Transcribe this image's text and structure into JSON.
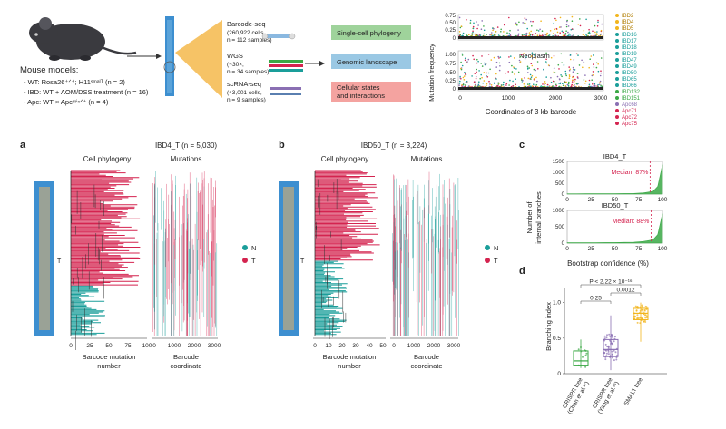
{
  "colors": {
    "teal": "#1a9e9a",
    "crimson": "#d4234f",
    "green": "#3aa845",
    "gold": "#f2b51c",
    "purple": "#8a6fb3",
    "dark": "#222222",
    "box_phylo": "#9fd39b",
    "box_genomic": "#9ac8e4",
    "box_cellular": "#f4a3a0",
    "tissue_blue": "#3d8fd0"
  },
  "mouse_models": {
    "heading": "Mouse models:",
    "lines": [
      "- WT: Rosa26⁺ᐟ⁺; H11ˢᵐᵃˡᵀ (n = 2)",
      "- IBD: WT + AOM/DSS treatment (n = 16)",
      "- Apc: WT × Apcᵐⁱⁿᐟ⁺ (n = 4)"
    ]
  },
  "assays": [
    {
      "title": "Barcode-seq",
      "lines": [
        "(260,922 cells,",
        "n = 112 samples)"
      ]
    },
    {
      "title": "WGS",
      "lines": [
        "(~30×,",
        "n = 34 samples)"
      ]
    },
    {
      "title": "scRNA-seq",
      "lines": [
        "(43,001 cells,",
        "n = 9 samples)"
      ]
    }
  ],
  "outputs": [
    "Single-cell phylogeny",
    "Genomic landscape",
    "Cellular states\nand interactions"
  ],
  "top_plot": {
    "ylabel": "Mutation frequency",
    "xlabel": "Coordinates of 3 kb barcode",
    "top_ticks": [
      "0",
      "0.25",
      "0.50",
      "0.75"
    ],
    "bottom_ticks": [
      "0",
      "0.25",
      "0.50",
      "0.75",
      "1.00"
    ],
    "x_ticks": [
      "0",
      "1000",
      "2000",
      "3000"
    ],
    "annotation": "Neoplasm"
  },
  "legend_samples": [
    {
      "name": "IBD2",
      "color": "#f2b51c"
    },
    {
      "name": "IBD4",
      "color": "#f2b51c"
    },
    {
      "name": "IBD5",
      "color": "#f2b51c"
    },
    {
      "name": "IBD16",
      "color": "#1a9e9a"
    },
    {
      "name": "IBD17",
      "color": "#1a9e9a"
    },
    {
      "name": "IBD18",
      "color": "#1a9e9a"
    },
    {
      "name": "IBD19",
      "color": "#1a9e9a"
    },
    {
      "name": "IBD47",
      "color": "#1a9e9a"
    },
    {
      "name": "IBD49",
      "color": "#1a9e9a"
    },
    {
      "name": "IBD50",
      "color": "#1a9e9a"
    },
    {
      "name": "IBD65",
      "color": "#1a9e9a"
    },
    {
      "name": "IBD66",
      "color": "#1a9e9a"
    },
    {
      "name": "IBD132",
      "color": "#3aa845"
    },
    {
      "name": "IBD151",
      "color": "#3aa845"
    },
    {
      "name": "Apc68",
      "color": "#8a6fb3"
    },
    {
      "name": "Apc71",
      "color": "#d4234f"
    },
    {
      "name": "Apc72",
      "color": "#d4234f"
    },
    {
      "name": "Apc75",
      "color": "#d4234f"
    }
  ],
  "panel_a": {
    "letter": "a",
    "title": "IBD4_T (n = 5,030)",
    "phylo_label": "Cell phylogeny",
    "mut_label": "Mutations",
    "x1_ticks": [
      "0",
      "25",
      "50",
      "75",
      "100"
    ],
    "x1_label": [
      "Barcode mutation",
      "number"
    ],
    "x2_ticks": [
      "0",
      "1000",
      "2000",
      "3000"
    ],
    "x2_label": [
      "Barcode",
      "coordinate"
    ],
    "tissue_mark": "T"
  },
  "panel_b": {
    "letter": "b",
    "title": "IBD50_T (n = 3,224)",
    "phylo_label": "Cell phylogeny",
    "mut_label": "Mutations",
    "x1_ticks": [
      "0",
      "10",
      "20",
      "30",
      "40",
      "50"
    ],
    "x1_label": [
      "Barcode mutation",
      "number"
    ],
    "x2_ticks": [
      "0",
      "1000",
      "2000",
      "3000"
    ],
    "x2_label": [
      "Barcode",
      "coordinate"
    ],
    "tissue_mark": "T"
  },
  "nt_legend": [
    {
      "label": "N",
      "color": "#1a9e9a"
    },
    {
      "label": "T",
      "color": "#d4234f"
    }
  ],
  "panel_c": {
    "letter": "c",
    "ylabel": [
      "Number of",
      "internal branches"
    ],
    "xlabel": "Bootstrap confidence (%)",
    "x_ticks": [
      "0",
      "25",
      "50",
      "75",
      "100"
    ],
    "subplots": [
      {
        "title": "IBD4_T",
        "median_label": "Median: 87%",
        "median": 87,
        "y_ticks": [
          "0",
          "500",
          "1000",
          "1500"
        ],
        "ymax": 1500
      },
      {
        "title": "IBD50_T",
        "median_label": "Median: 88%",
        "median": 88,
        "y_ticks": [
          "0",
          "500",
          "1000"
        ],
        "ymax": 1000
      }
    ]
  },
  "panel_d": {
    "letter": "d",
    "ylabel": "Branching index",
    "y_ticks": [
      "0",
      "0.5",
      "1.0"
    ],
    "categories": [
      {
        "label": [
          "CRISPR tree",
          "(Chan et al.¹⁷)"
        ],
        "color": "#3aa845"
      },
      {
        "label": [
          "CRISPR tree",
          "(Yang et al.¹⁶)"
        ],
        "color": "#8a6fb3"
      },
      {
        "label": [
          "SMALT tree"
        ],
        "color": "#f2b51c"
      }
    ],
    "p_values": [
      "P < 2.22 × 10⁻¹⁶",
      "0.0012",
      "0.25"
    ]
  },
  "chart_data": [
    {
      "type": "box",
      "title": "",
      "ylabel": "Branching index",
      "ylim": [
        0,
        1.2
      ],
      "categories": [
        "CRISPR tree (Chan et al.)",
        "CRISPR tree (Yang et al.)",
        "SMALT tree"
      ],
      "series": [
        {
          "values": [
            {
              "min": 0.08,
              "q1": 0.12,
              "median": 0.18,
              "q3": 0.32,
              "max": 0.48
            },
            {
              "min": 0.05,
              "q1": 0.24,
              "median": 0.34,
              "q3": 0.48,
              "max": 0.82
            },
            {
              "min": 0.45,
              "q1": 0.76,
              "median": 0.85,
              "q3": 0.92,
              "max": 1.0
            }
          ]
        }
      ]
    },
    {
      "type": "bar",
      "title": "IBD4_T",
      "xlabel": "Bootstrap confidence (%)",
      "ylabel": "Number of internal branches",
      "xlim": [
        0,
        100
      ],
      "ylim": [
        0,
        1500
      ],
      "categories": [
        0,
        10,
        20,
        30,
        40,
        50,
        60,
        70,
        80,
        90,
        95,
        100
      ],
      "values": [
        12,
        14,
        16,
        16,
        18,
        20,
        24,
        30,
        55,
        120,
        350,
        1350
      ]
    },
    {
      "type": "bar",
      "title": "IBD50_T",
      "xlabel": "Bootstrap confidence (%)",
      "ylabel": "Number of internal branches",
      "xlim": [
        0,
        100
      ],
      "ylim": [
        0,
        1000
      ],
      "categories": [
        0,
        10,
        20,
        30,
        40,
        50,
        60,
        70,
        80,
        90,
        95,
        100
      ],
      "values": [
        10,
        12,
        14,
        14,
        16,
        18,
        22,
        28,
        50,
        100,
        260,
        900
      ]
    }
  ]
}
